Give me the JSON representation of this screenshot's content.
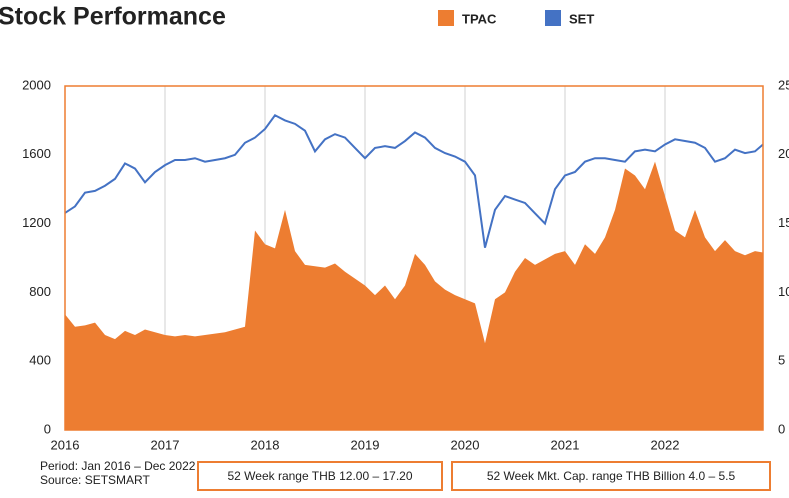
{
  "chart_data": {
    "type": "area_line",
    "title": "Stock Performance",
    "x": [
      2016.0,
      2016.1,
      2016.2,
      2016.3,
      2016.4,
      2016.5,
      2016.6,
      2016.7,
      2016.8,
      2016.9,
      2017.0,
      2017.1,
      2017.2,
      2017.3,
      2017.4,
      2017.5,
      2017.6,
      2017.7,
      2017.8,
      2017.9,
      2018.0,
      2018.1,
      2018.2,
      2018.3,
      2018.4,
      2018.5,
      2018.6,
      2018.7,
      2018.8,
      2018.9,
      2019.0,
      2019.1,
      2019.2,
      2019.3,
      2019.4,
      2019.5,
      2019.6,
      2019.7,
      2019.8,
      2019.9,
      2020.0,
      2020.1,
      2020.2,
      2020.3,
      2020.4,
      2020.5,
      2020.6,
      2020.7,
      2020.8,
      2020.9,
      2021.0,
      2021.1,
      2021.2,
      2021.3,
      2021.4,
      2021.5,
      2021.6,
      2021.7,
      2021.8,
      2021.9,
      2022.0,
      2022.1,
      2022.2,
      2022.3,
      2022.4,
      2022.5,
      2022.6,
      2022.7,
      2022.8,
      2022.9,
      2022.98
    ],
    "series": [
      {
        "name": "TPAC",
        "color": "#ed7d31",
        "axis": "y2",
        "values": [
          8.4,
          7.5,
          7.6,
          7.8,
          6.9,
          6.6,
          7.2,
          6.9,
          7.3,
          7.1,
          6.9,
          6.8,
          6.9,
          6.8,
          6.9,
          7.0,
          7.1,
          7.3,
          7.5,
          14.5,
          13.5,
          13.2,
          16.0,
          13.0,
          12.0,
          11.9,
          11.8,
          12.1,
          11.5,
          11.0,
          10.5,
          9.8,
          10.5,
          9.5,
          10.5,
          12.8,
          12.0,
          10.8,
          10.2,
          9.8,
          9.5,
          9.2,
          6.3,
          9.5,
          10.0,
          11.5,
          12.5,
          12.0,
          12.4,
          12.8,
          13.0,
          12.0,
          13.5,
          12.8,
          14.0,
          16.0,
          19.0,
          18.5,
          17.5,
          19.5,
          17.0,
          14.5,
          14.0,
          16.0,
          14.0,
          13.0,
          13.8,
          13.0,
          12.7,
          13.0,
          12.9
        ]
      },
      {
        "name": "SET",
        "color": "#4472c4",
        "values": [
          1262,
          1300,
          1380,
          1390,
          1420,
          1460,
          1550,
          1520,
          1440,
          1500,
          1540,
          1570,
          1570,
          1580,
          1560,
          1570,
          1580,
          1600,
          1670,
          1700,
          1750,
          1830,
          1800,
          1780,
          1740,
          1620,
          1690,
          1720,
          1700,
          1640,
          1580,
          1640,
          1650,
          1640,
          1680,
          1730,
          1700,
          1640,
          1610,
          1590,
          1560,
          1480,
          1060,
          1280,
          1360,
          1340,
          1320,
          1260,
          1200,
          1400,
          1480,
          1500,
          1560,
          1580,
          1580,
          1570,
          1560,
          1620,
          1630,
          1620,
          1660,
          1690,
          1680,
          1670,
          1640,
          1560,
          1580,
          1630,
          1610,
          1620,
          1660
        ]
      }
    ],
    "xlim": [
      2016,
      2022.98
    ],
    "xticks": [
      2016,
      2017,
      2018,
      2019,
      2020,
      2021,
      2022
    ],
    "ylim": [
      0,
      2000
    ],
    "yticks": [
      0,
      400,
      800,
      1200,
      1600,
      2000
    ],
    "y2lim": [
      0,
      25
    ],
    "y2ticks": [
      0,
      5,
      10,
      15,
      20,
      25
    ],
    "grid": "x",
    "frame_color": "#ed7d31"
  },
  "footer": {
    "period": "Period: Jan 2016 – Dec 2022",
    "source": "Source: SETSMART",
    "boxes": [
      "52 Week range THB 12.00 – 17.20",
      "52 Week Mkt. Cap. range THB Billion 4.0 – 5.5"
    ]
  }
}
